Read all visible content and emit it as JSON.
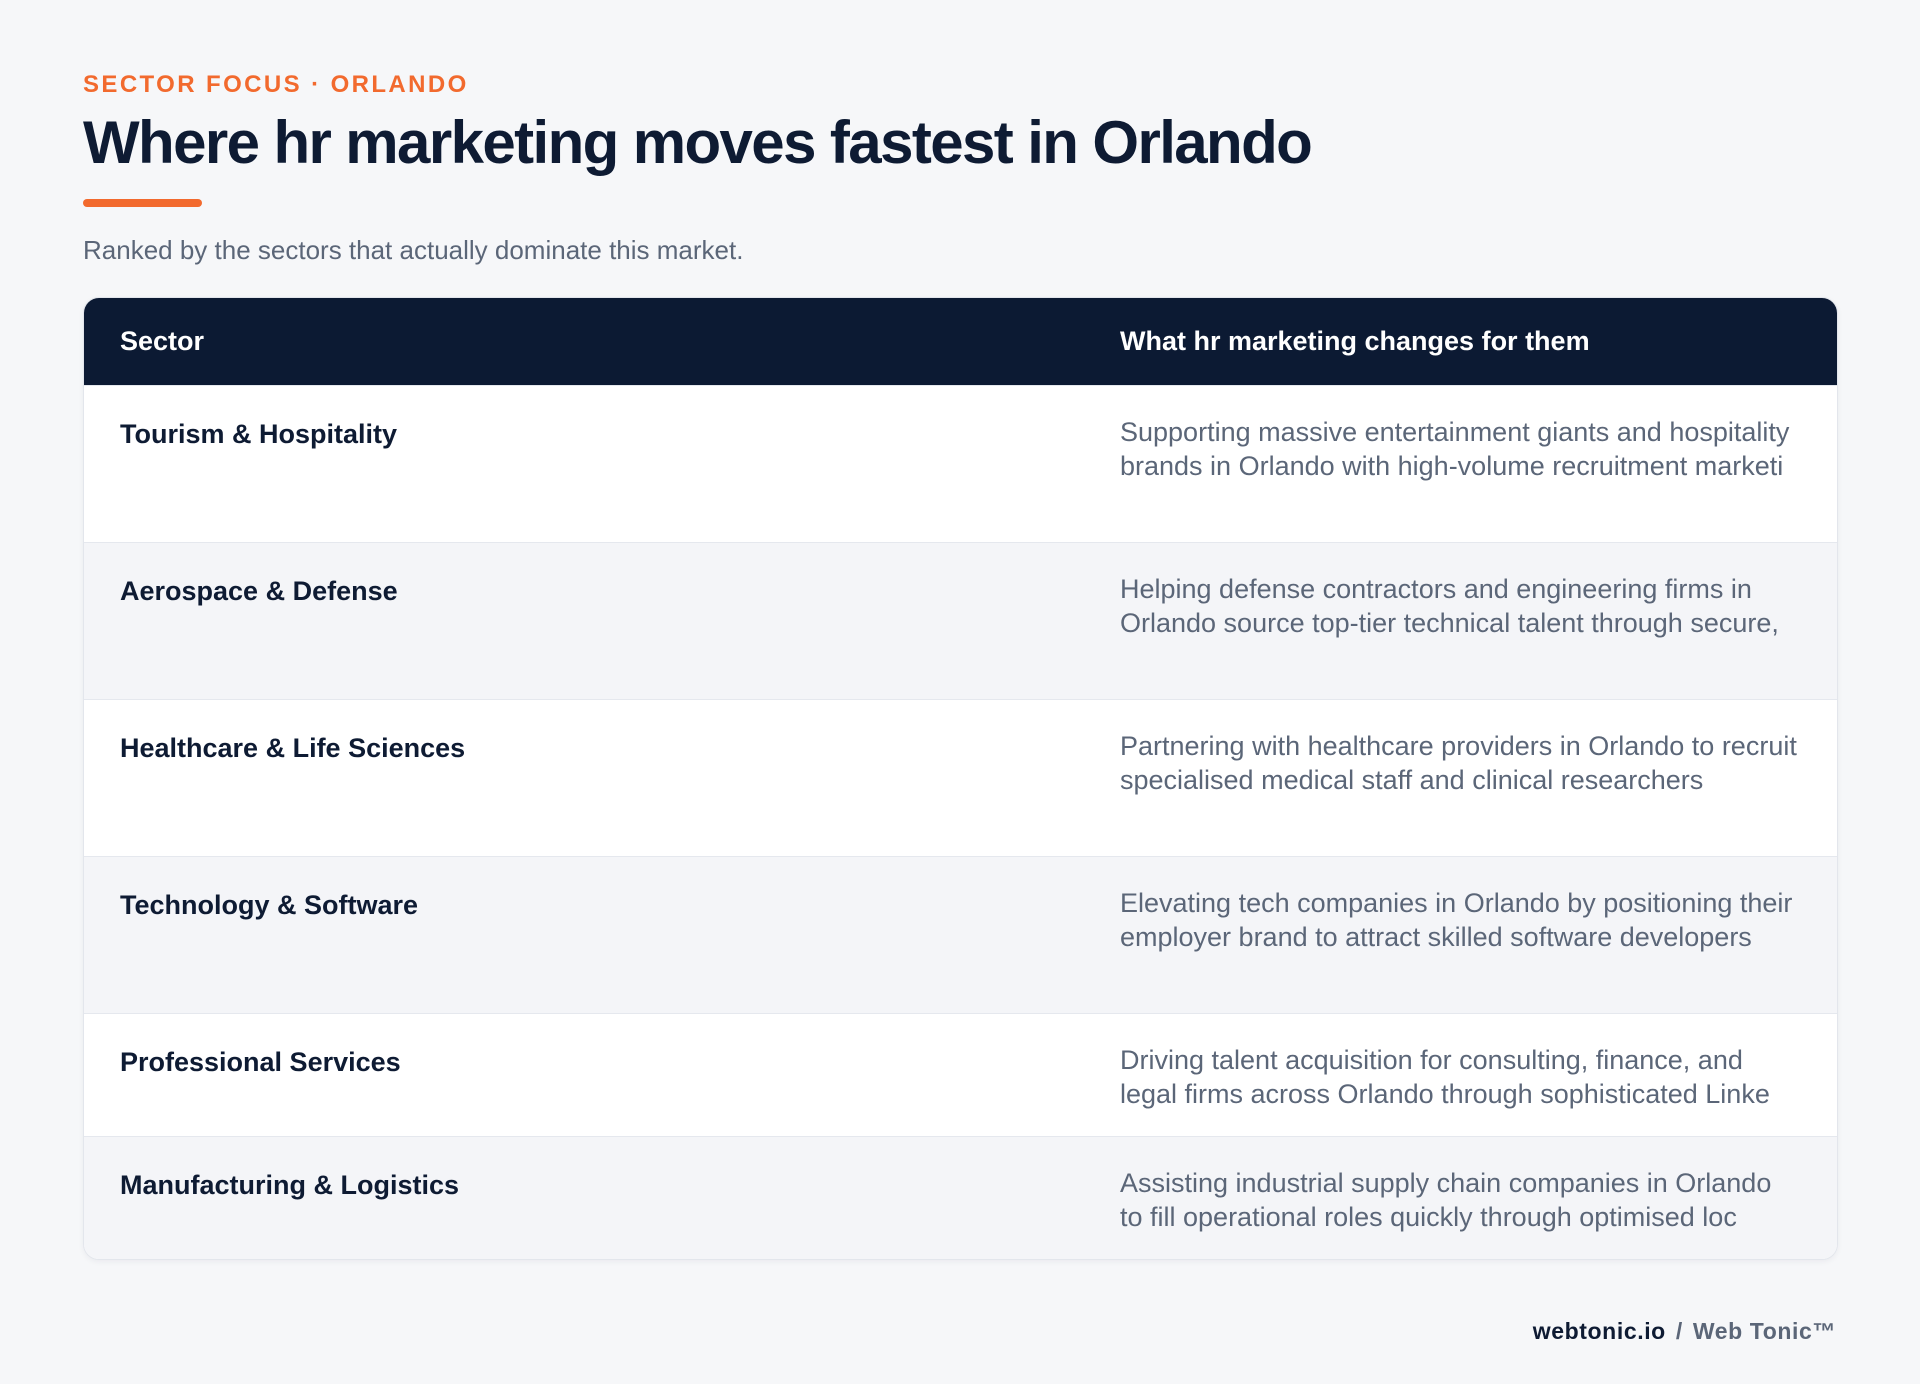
{
  "header": {
    "eyebrow": "SECTOR FOCUS · ORLANDO",
    "title": "Where hr marketing moves fastest in Orlando",
    "subtitle": "Ranked by the sectors that actually dominate this market."
  },
  "table": {
    "columns": [
      "Sector",
      "What hr marketing changes for them"
    ],
    "rows": [
      {
        "sector": "Tourism & Hospitality",
        "description": "Supporting massive entertainment giants and hospitality brands in Orlando with high-volume recruitment marketi"
      },
      {
        "sector": "Aerospace & Defense",
        "description": "Helping defense contractors and engineering firms in Orlando source top-tier technical talent through secure,"
      },
      {
        "sector": "Healthcare & Life Sciences",
        "description": "Partnering with healthcare providers in Orlando to recruit specialised medical staff and clinical researchers"
      },
      {
        "sector": "Technology & Software",
        "description": "Elevating tech companies in Orlando by positioning their employer brand to attract skilled software developers"
      },
      {
        "sector": "Professional Services",
        "description": "Driving talent acquisition for consulting, finance, and legal firms across Orlando through sophisticated Linke"
      },
      {
        "sector": "Manufacturing & Logistics",
        "description": "Assisting industrial supply chain companies in Orlando to fill operational roles quickly through optimised loc"
      }
    ]
  },
  "footer": {
    "domain": "webtonic.io",
    "separator": "/",
    "brand": "Web Tonic™"
  },
  "colors": {
    "accent": "#f26a2e",
    "navy": "#0c1a33",
    "muted": "#5b6678",
    "background": "#f6f7f9"
  }
}
